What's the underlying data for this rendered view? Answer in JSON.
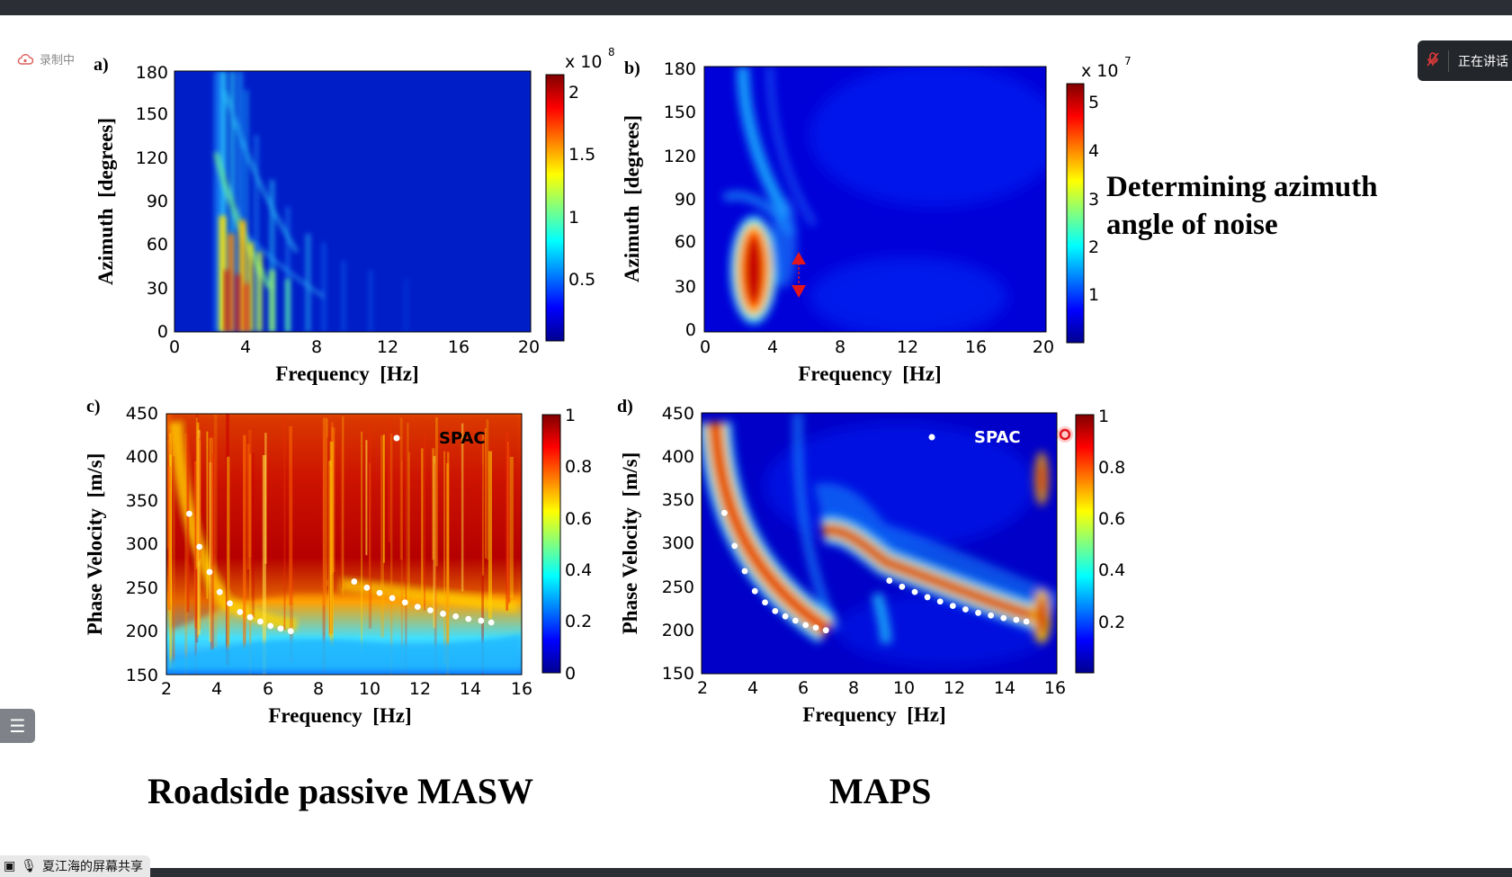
{
  "screen": {
    "recording_label": "录制中",
    "speaking_label": "正在讲话",
    "share_label": "夏江海的屏幕共享",
    "icons": {
      "recording": "cloud-icon",
      "mic_muted": "mic-off-icon",
      "outline": "list-icon",
      "share_mic": "mic-icon",
      "share_screen": "screen-icon"
    }
  },
  "slide": {
    "right_note_line1": "Determining azimuth",
    "right_note_line2": "angle of noise",
    "caption_left": "Roadside passive MASW",
    "caption_right": "MAPS"
  },
  "chart_data": [
    {
      "type": "heatmap",
      "panel_label": "a)",
      "xlabel": "Frequency  [Hz]",
      "ylabel": "Azimuth  [degrees]",
      "xlim": [
        0,
        20
      ],
      "ylim": [
        0,
        180
      ],
      "xticks": [
        "0",
        "4",
        "8",
        "12",
        "16",
        "20"
      ],
      "yticks": [
        "0",
        "30",
        "60",
        "90",
        "120",
        "150",
        "180"
      ],
      "colorbar": {
        "exponent_base": "x 10",
        "exponent": "8",
        "ticks": [
          "0.5",
          "1",
          "1.5",
          "2"
        ],
        "range": [
          0,
          2.2
        ]
      }
    },
    {
      "type": "heatmap",
      "panel_label": "b)",
      "xlabel": "Frequency  [Hz]",
      "ylabel": "Azimuth  [degrees]",
      "xlim": [
        0,
        20
      ],
      "ylim": [
        0,
        180
      ],
      "xticks": [
        "0",
        "4",
        "8",
        "12",
        "16",
        "20"
      ],
      "yticks": [
        "0",
        "30",
        "60",
        "90",
        "120",
        "150",
        "180"
      ],
      "colorbar": {
        "exponent_base": "x 10",
        "exponent": "7",
        "ticks": [
          "1",
          "2",
          "3",
          "4",
          "5"
        ],
        "range": [
          0,
          5.4
        ]
      },
      "annotation": {
        "type": "double-arrow",
        "x": 5.5,
        "y_from": 20,
        "y_to": 50,
        "color": "#e3161b"
      }
    },
    {
      "type": "heatmap",
      "panel_label": "c)",
      "xlabel": "Frequency  [Hz]",
      "ylabel": "Phase Velocity  [m/s]",
      "xlim": [
        2,
        16
      ],
      "ylim": [
        150,
        450
      ],
      "xticks": [
        "2",
        "4",
        "6",
        "8",
        "10",
        "12",
        "14",
        "16"
      ],
      "yticks": [
        "150",
        "200",
        "250",
        "300",
        "350",
        "400",
        "450"
      ],
      "colorbar": {
        "ticks": [
          "0",
          "0.2",
          "0.4",
          "0.6",
          "0.8",
          "1"
        ],
        "range": [
          0,
          1
        ]
      },
      "legend": {
        "label": "SPAC",
        "position": "top-right"
      },
      "series": [
        {
          "x": [
            2.9,
            3.3,
            3.7,
            4.1,
            4.5,
            4.9,
            5.3,
            5.7,
            6.1,
            6.5,
            6.9,
            9.4,
            9.9,
            10.4,
            10.9,
            11.4,
            11.9,
            12.4,
            12.9,
            13.4,
            13.9,
            14.4,
            14.8
          ],
          "y": [
            335,
            297,
            268,
            245,
            232,
            222,
            216,
            211,
            206,
            203,
            200,
            257,
            250,
            244,
            238,
            233,
            228,
            224,
            220,
            217,
            214,
            212,
            210
          ]
        }
      ]
    },
    {
      "type": "heatmap",
      "panel_label": "d)",
      "xlabel": "Frequency  [Hz]",
      "ylabel": "Phase Velocity  [m/s]",
      "xlim": [
        2,
        16
      ],
      "ylim": [
        150,
        450
      ],
      "xticks": [
        "2",
        "4",
        "6",
        "8",
        "10",
        "12",
        "14",
        "16"
      ],
      "yticks": [
        "150",
        "200",
        "250",
        "300",
        "350",
        "400",
        "450"
      ],
      "colorbar": {
        "ticks": [
          "0.2",
          "0.4",
          "0.6",
          "0.8",
          "1"
        ],
        "range": [
          0,
          1
        ]
      },
      "legend": {
        "label": "SPAC",
        "position": "top-right"
      },
      "series": [
        {
          "x": [
            2.9,
            3.3,
            3.7,
            4.1,
            4.5,
            4.9,
            5.3,
            5.7,
            6.1,
            6.5,
            6.9,
            9.4,
            9.9,
            10.4,
            10.9,
            11.4,
            11.9,
            12.4,
            12.9,
            13.4,
            13.9,
            14.4,
            14.8
          ],
          "y": [
            335,
            297,
            268,
            245,
            232,
            222,
            216,
            211,
            206,
            203,
            200,
            257,
            250,
            244,
            238,
            233,
            228,
            224,
            220,
            217,
            214,
            212,
            210
          ]
        }
      ]
    }
  ]
}
